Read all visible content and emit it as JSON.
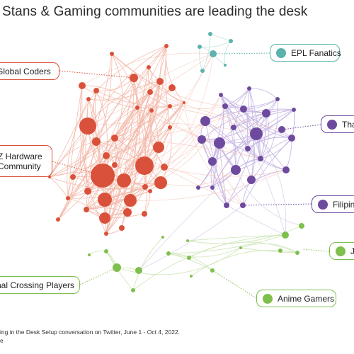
{
  "title": "Stans & Gaming communities are leading the desk",
  "communities": [
    {
      "key": "global-coders",
      "label": "Global Coders",
      "color": "#d9513a"
    },
    {
      "key": "z-hardware",
      "label_line1": "Z Hardware",
      "label_line2": "Community",
      "color": "#d9513a"
    },
    {
      "key": "epl-fanatics",
      "label": "EPL Fanatics",
      "color": "#5bb3ac"
    },
    {
      "key": "thai",
      "label": "Tha",
      "color": "#6e4a9e"
    },
    {
      "key": "filipino",
      "label": "Filipino",
      "color": "#6e4a9e"
    },
    {
      "key": "j",
      "label": "J",
      "color": "#7fbf4d"
    },
    {
      "key": "animal-crossing",
      "label": "nal Crossing Players",
      "color": "#7fbf4d"
    },
    {
      "key": "anime-gamers",
      "label": "Anime Gamers",
      "color": "#7fbf4d"
    }
  ],
  "colors": {
    "red": "#d9513a",
    "teal": "#5bb3ac",
    "purple": "#6e4a9e",
    "green": "#7fbf4d",
    "red_edge": "#f2b7a8",
    "purple_edge": "#c7b7e4",
    "green_edge": "#cfe7b8",
    "teal_edge": "#bfe3df"
  },
  "footnote": {
    "line1": "ing in the Desk Setup conversation on Twitter, June 1 - Oct 4, 2022.",
    "line2": "e"
  }
}
